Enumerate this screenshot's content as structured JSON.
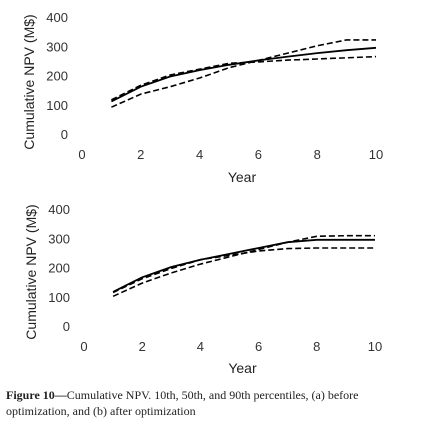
{
  "chart_data": [
    {
      "type": "line",
      "xlabel": "Year",
      "ylabel": "Cumulative NPV (M$)",
      "xlim": [
        0,
        10
      ],
      "ylim": [
        0,
        400
      ],
      "xticks": [
        0,
        2,
        4,
        6,
        8,
        10
      ],
      "yticks": [
        0,
        100,
        200,
        300,
        400
      ],
      "grid": false,
      "legend": "none",
      "series": [
        {
          "x": [
            1,
            2,
            3,
            4,
            5,
            6,
            7,
            8,
            9,
            10
          ],
          "values": [
            115,
            165,
            200,
            222,
            240,
            255,
            268,
            280,
            290,
            298
          ],
          "style": "solid"
        },
        {
          "x": [
            1,
            2,
            3,
            4,
            5,
            6,
            7,
            8,
            9,
            10
          ],
          "values": [
            95,
            140,
            165,
            195,
            230,
            255,
            280,
            305,
            325,
            325
          ],
          "style": "dashed"
        },
        {
          "x": [
            1,
            2,
            3,
            4,
            5,
            6,
            7,
            8,
            9,
            10
          ],
          "values": [
            120,
            170,
            205,
            225,
            245,
            250,
            256,
            260,
            264,
            268
          ],
          "style": "dashed"
        }
      ]
    },
    {
      "type": "line",
      "xlabel": "Year",
      "ylabel": "Cumulative NPV (M$)",
      "xlim": [
        0,
        10
      ],
      "ylim": [
        0,
        400
      ],
      "xticks": [
        0,
        2,
        4,
        6,
        8,
        10
      ],
      "yticks": [
        0,
        100,
        200,
        300,
        400
      ],
      "grid": false,
      "legend": "none",
      "series": [
        {
          "x": [
            1,
            2,
            3,
            4,
            5,
            6,
            7,
            8,
            9,
            10
          ],
          "values": [
            120,
            170,
            205,
            230,
            250,
            270,
            290,
            298,
            298,
            298
          ],
          "style": "solid"
        },
        {
          "x": [
            1,
            2,
            3,
            4,
            5,
            6,
            7,
            8,
            9,
            10
          ],
          "values": [
            105,
            150,
            185,
            215,
            240,
            265,
            290,
            310,
            312,
            312
          ],
          "style": "dashed"
        },
        {
          "x": [
            1,
            2,
            3,
            4,
            5,
            6,
            7,
            8,
            9,
            10
          ],
          "values": [
            118,
            165,
            200,
            230,
            245,
            260,
            268,
            270,
            270,
            270
          ],
          "style": "dashed"
        }
      ]
    }
  ],
  "caption": {
    "label": "Figure 10—",
    "text": "Cumulative NPV. 10th, 50th, and 90th percentiles, (a) before optimization, and (b) after optimization"
  }
}
